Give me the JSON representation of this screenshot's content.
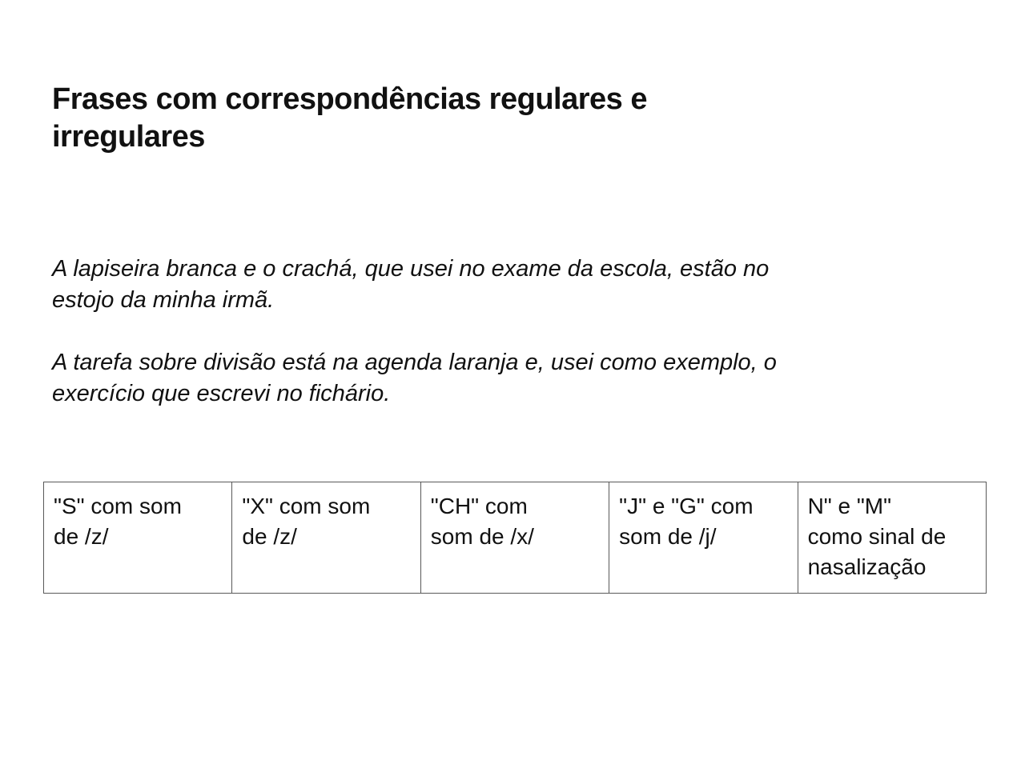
{
  "slide": {
    "title": "Frases com correspondências regulares e\nirregulares",
    "paragraphs": [
      {
        "text": "A lapiseira branca e o crachá, que usei no exame da escola, estão no\nestojo da minha irmã."
      },
      {
        "text": "A tarefa sobre divisão está na agenda laranja e, usei como exemplo, o\nexercício que escrevi no fichário."
      }
    ],
    "table": {
      "cells": [
        {
          "text": "\"S\" com som\nde /z/"
        },
        {
          "text": "\"X\" com som\nde /z/"
        },
        {
          "text": "\"CH\" com\nsom de /x/"
        },
        {
          "text": "\"J\" e \"G\" com\nsom de /j/"
        },
        {
          "text": "N\" e \"M\"\ncomo sinal de\nnasalização"
        }
      ]
    },
    "colors": {
      "background": "#ffffff",
      "text": "#111111",
      "table_border": "#595959"
    }
  }
}
